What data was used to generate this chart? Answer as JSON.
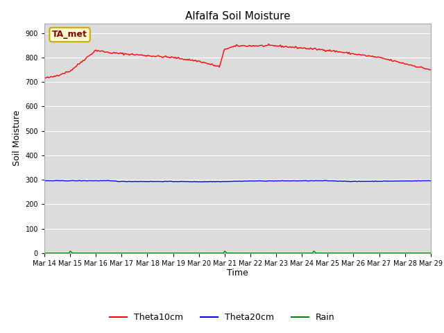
{
  "title": "Alfalfa Soil Moisture",
  "xlabel": "Time",
  "ylabel": "Soil Moisture",
  "ylim": [
    0,
    940
  ],
  "yticks": [
    0,
    100,
    200,
    300,
    400,
    500,
    600,
    700,
    800,
    900
  ],
  "bg_color": "#dcdcdc",
  "annotation_text": "TA_met",
  "legend_labels": [
    "Theta10cm",
    "Theta20cm",
    "Rain"
  ],
  "legend_colors": [
    "red",
    "blue",
    "green"
  ],
  "num_points": 361,
  "key_days_10": [
    0.0,
    0.3,
    1.0,
    2.0,
    2.5,
    5.0,
    6.0,
    6.8,
    7.0,
    7.5,
    9.0,
    11.0,
    13.0,
    15.0
  ],
  "key_vals_10": [
    716,
    720,
    745,
    830,
    820,
    800,
    785,
    762,
    835,
    848,
    848,
    830,
    800,
    750
  ],
  "key_days_20": [
    0,
    2.5,
    3.0,
    5.0,
    6.0,
    7.0,
    8.0,
    11.0,
    12.0,
    15.0
  ],
  "key_vals_20": [
    296,
    296,
    293,
    293,
    292,
    293,
    295,
    296,
    293,
    296
  ],
  "rain_events": [
    1.0,
    7.0,
    10.5
  ],
  "rain_height": 8,
  "xlim": [
    0,
    15
  ],
  "xtick_start_day": 14,
  "num_xticks": 16,
  "title_fontsize": 11,
  "axis_label_fontsize": 9,
  "tick_fontsize": 7,
  "annotation_fontsize": 9,
  "legend_fontsize": 9
}
